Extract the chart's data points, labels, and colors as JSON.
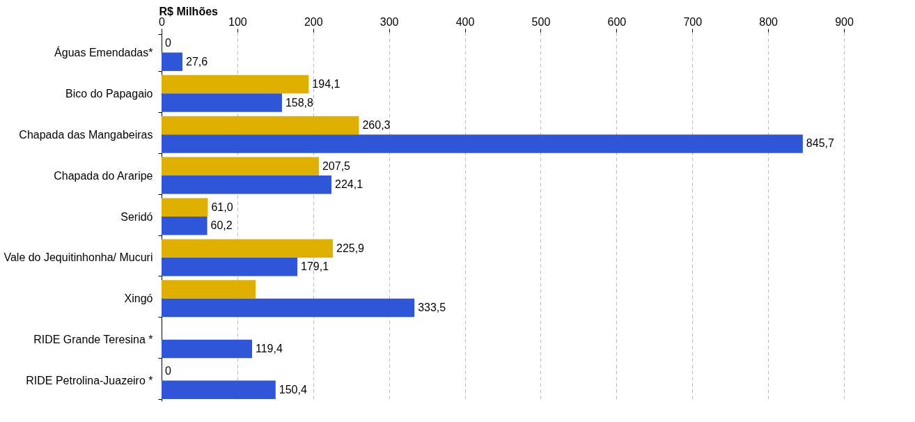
{
  "chart_data": {
    "type": "bar",
    "orientation": "horizontal",
    "xlabel": "R$ Milhões",
    "categories": [
      "Águas Emendadas*",
      "Bico do Papagaio",
      "Chapada das Mangabeiras",
      "Chapada do Araripe",
      "Seridó",
      "Vale do Jequitinhonha/ Mucuri",
      "Xingó",
      "RIDE Grande Teresina *",
      "RIDE Petrolina-Juazeiro *"
    ],
    "series": [
      {
        "color": "#e0b000",
        "values": [
          0,
          194.1,
          260.3,
          207.5,
          61.0,
          225.9,
          124,
          null,
          0
        ],
        "value_labels": [
          "0",
          "194,1",
          "260,3",
          "207,5",
          "61,0",
          "225,9",
          null,
          null,
          "0"
        ]
      },
      {
        "color": "#2f55d8",
        "values": [
          27.6,
          158.8,
          845.7,
          224.1,
          60.2,
          179.1,
          333.5,
          119.4,
          150.4
        ],
        "value_labels": [
          "27,6",
          "158,8",
          "845,7",
          "224,1",
          "60,2",
          "179,1",
          "333,5",
          "119,4",
          "150,4"
        ]
      }
    ],
    "xlim": [
      0,
      900
    ],
    "xticks": [
      0,
      100,
      200,
      300,
      400,
      500,
      600,
      700,
      800,
      900
    ],
    "grid": "x",
    "line_style": "dashed"
  }
}
